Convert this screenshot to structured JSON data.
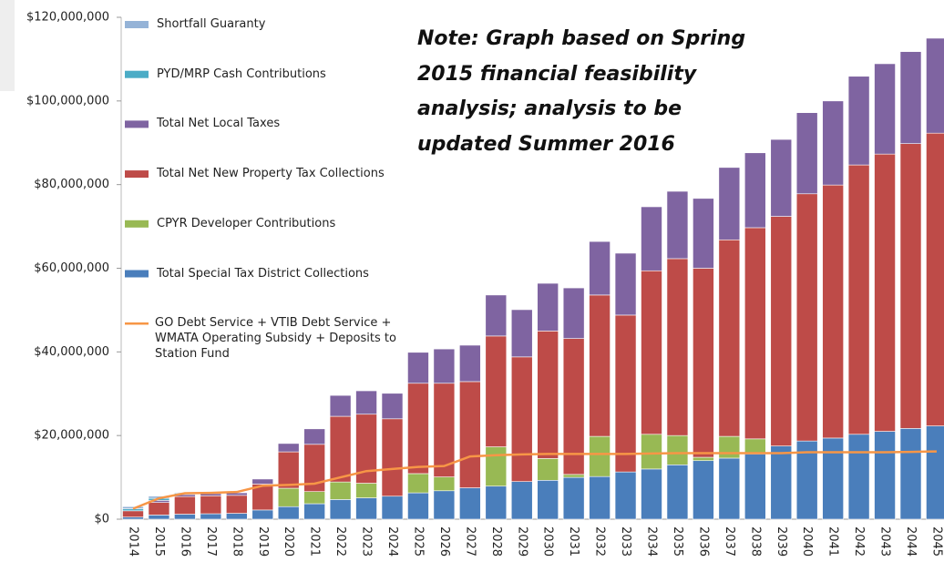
{
  "chart_data": {
    "type": "bar",
    "stacked": true,
    "annotation_lines": [
      "Note: Graph based on Spring",
      "2015 financial feasibility",
      "analysis; analysis to be",
      "updated Summer 2016"
    ],
    "categories": [
      "2014",
      "2015",
      "2016",
      "2017",
      "2018",
      "2019",
      "2020",
      "2021",
      "2022",
      "2023",
      "2024",
      "2025",
      "2026",
      "2027",
      "2028",
      "2029",
      "2030",
      "2031",
      "2032",
      "2033",
      "2034",
      "2035",
      "2036",
      "2037",
      "2038",
      "2039",
      "2040",
      "2041",
      "2042",
      "2043",
      "2044",
      "2045"
    ],
    "ylim": [
      0,
      120000000
    ],
    "yticks": [
      {
        "value": 0,
        "label": "$0"
      },
      {
        "value": 20000000,
        "label": "$20,000,000"
      },
      {
        "value": 40000000,
        "label": "$40,000,000"
      },
      {
        "value": 60000000,
        "label": "$60,000,000"
      },
      {
        "value": 80000000,
        "label": "$80,000,000"
      },
      {
        "value": 100000000,
        "label": "$100,000,000"
      },
      {
        "value": 120000000,
        "label": "$120,000,000"
      }
    ],
    "series": [
      {
        "name": "Total Special Tax District Collections",
        "color": "#4a7ebb",
        "values": [
          500000.0,
          1000000.0,
          1200000.0,
          1300000.0,
          1400000.0,
          2200000.0,
          3000000.0,
          3700000.0,
          4700000.0,
          5100000.0,
          5500000.0,
          6300000.0,
          6800000.0,
          7500000.0,
          7900000.0,
          9000000.0,
          9300000.0,
          10000000.0,
          10200000.0,
          11300000.0,
          12000000.0,
          13000000.0,
          14000000.0,
          14600000.0,
          15600000.0,
          17500000.0,
          18700000.0,
          19400000.0,
          20300000.0,
          21000000.0,
          21700000.0,
          22300000.0
        ]
      },
      {
        "name": "CPYR Developer Contributions",
        "color": "#98b954",
        "values": [
          0,
          0,
          0,
          0,
          0,
          0,
          4400000.0,
          2900000.0,
          4200000.0,
          3500000.0,
          0,
          4600000.0,
          3300000.0,
          0,
          9400000.0,
          0,
          5200000.0,
          700000.0,
          9600000.0,
          0,
          8300000.0,
          7000000.0,
          800000.0,
          5200000.0,
          3600000.0,
          0,
          0,
          0,
          0,
          0,
          0,
          0
        ]
      },
      {
        "name": "Total Net New Property Tax Collections",
        "color": "#be4b48",
        "values": [
          1500000.0,
          3000000.0,
          4200000.0,
          4300000.0,
          4300000.0,
          6200000.0,
          8700000.0,
          11300000.0,
          15700000.0,
          16500000.0,
          18500000.0,
          21600000.0,
          22400000.0,
          25400000.0,
          26500000.0,
          29800000.0,
          30500000.0,
          32500000.0,
          33800000.0,
          37500000.0,
          39100000.0,
          42300000.0,
          45200000.0,
          47000000.0,
          50500000.0,
          54900000.0,
          59100000.0,
          60500000.0,
          64400000.0,
          66300000.0,
          68100000.0,
          70000000.0
        ]
      },
      {
        "name": "Total Net Local Taxes",
        "color": "#7f64a1",
        "values": [
          0,
          500000.0,
          500000.0,
          500000.0,
          600000.0,
          1200000.0,
          2000000.0,
          3700000.0,
          5000000.0,
          5600000.0,
          6100000.0,
          7400000.0,
          8200000.0,
          8700000.0,
          9800000.0,
          11300000.0,
          11400000.0,
          12100000.0,
          12800000.0,
          14800000.0,
          15300000.0,
          16100000.0,
          16700000.0,
          17300000.0,
          17900000.0,
          18400000.0,
          19400000.0,
          20100000.0,
          21200000.0,
          21600000.0,
          22000000.0,
          22700000.0
        ]
      },
      {
        "name": "PYD/MRP Cash Contributions",
        "color": "#4bacc6",
        "values": [
          500000.0,
          500000.0,
          300000.0,
          0,
          0,
          0,
          0,
          0,
          0,
          0,
          0,
          0,
          0,
          0,
          0,
          0,
          0,
          0,
          0,
          0,
          0,
          0,
          0,
          0,
          0,
          0,
          0,
          0,
          0,
          0,
          0,
          0
        ]
      },
      {
        "name": "Shortfall Guaranty",
        "color": "#95b3d7",
        "values": [
          500000.0,
          500000.0,
          200000.0,
          0,
          0,
          0,
          0,
          0,
          0,
          0,
          0,
          0,
          0,
          0,
          0,
          0,
          0,
          0,
          0,
          0,
          0,
          0,
          0,
          0,
          0,
          0,
          0,
          0,
          0,
          0,
          0,
          0
        ]
      },
      {
        "name": "GO Debt Service + VTIB Debt Service + WMATA Operating Subsidy + Deposits to Station Fund",
        "color": "#f79646",
        "type": "line",
        "values": [
          2500000.0,
          5000000.0,
          6200000.0,
          6300000.0,
          6500000.0,
          8000000.0,
          8200000.0,
          8500000.0,
          10000000.0,
          11500000.0,
          12000000.0,
          12500000.0,
          12700000.0,
          15000000.0,
          15300000.0,
          15500000.0,
          15600000.0,
          15600000.0,
          15600000.0,
          15600000.0,
          15700000.0,
          15800000.0,
          15800000.0,
          15800000.0,
          15800000.0,
          15800000.0,
          16000000.0,
          16000000.0,
          16000000.0,
          16000000.0,
          16100000.0,
          16200000.0
        ]
      }
    ]
  }
}
